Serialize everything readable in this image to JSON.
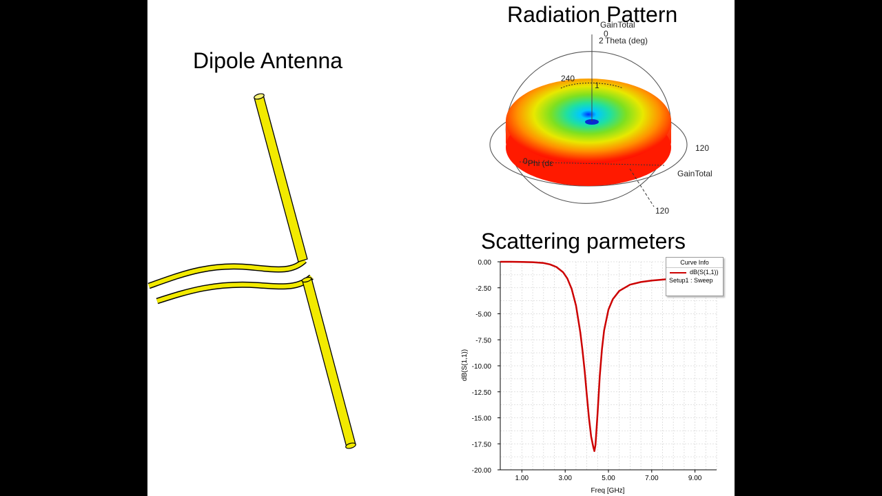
{
  "titles": {
    "dipole": "Dipole Antenna",
    "radiation": "Radiation Pattern",
    "scattering": "Scattering parmeters"
  },
  "radiation_pattern": {
    "labels": {
      "gain_top": "GainTotal",
      "zero": "0",
      "theta": "Theta (deg)",
      "two": "2",
      "angle_240": "240",
      "one": "1",
      "angle_120_right": "120",
      "phi": "Phi (dε",
      "zero_left": "0",
      "gain_right": "GainTotal",
      "angle_120_bottom": "120"
    }
  },
  "colors": {
    "antenna": "#f2ea00",
    "curve": "#cc0000",
    "grid": "#d8d8d8"
  },
  "chart_data": {
    "type": "line",
    "title": "",
    "xlabel": "Freq [GHz]",
    "ylabel": "dB(S(1,1))",
    "xlim": [
      0.0,
      10.0
    ],
    "ylim": [
      -20.0,
      0.0
    ],
    "x_ticks": [
      "1.00",
      "3.00",
      "5.00",
      "7.00",
      "9.00"
    ],
    "y_ticks": [
      "0.00",
      "-2.50",
      "-5.00",
      "-7.50",
      "-10.00",
      "-12.50",
      "-15.00",
      "-17.50",
      "-20.00"
    ],
    "legend": {
      "header": "Curve Info",
      "placement": "top-right",
      "setup": "Setup1 : Sweep"
    },
    "series": [
      {
        "name": "dB(S(1,1))",
        "x": [
          0.0,
          0.5,
          1.0,
          1.5,
          2.0,
          2.3,
          2.6,
          2.9,
          3.1,
          3.3,
          3.5,
          3.7,
          3.8,
          3.9,
          4.0,
          4.1,
          4.2,
          4.3,
          4.35,
          4.4,
          4.5,
          4.6,
          4.7,
          4.8,
          5.0,
          5.2,
          5.5,
          6.0,
          6.5,
          7.0,
          8.0,
          9.0,
          10.0
        ],
        "values": [
          0.0,
          0.0,
          -0.01,
          -0.04,
          -0.12,
          -0.25,
          -0.5,
          -1.0,
          -1.6,
          -2.6,
          -4.2,
          -6.8,
          -8.5,
          -10.5,
          -12.8,
          -15.0,
          -16.8,
          -17.8,
          -18.2,
          -17.6,
          -14.5,
          -11.0,
          -8.4,
          -6.6,
          -4.6,
          -3.6,
          -2.8,
          -2.2,
          -1.95,
          -1.8,
          -1.62,
          -1.52,
          -1.45
        ]
      }
    ]
  }
}
